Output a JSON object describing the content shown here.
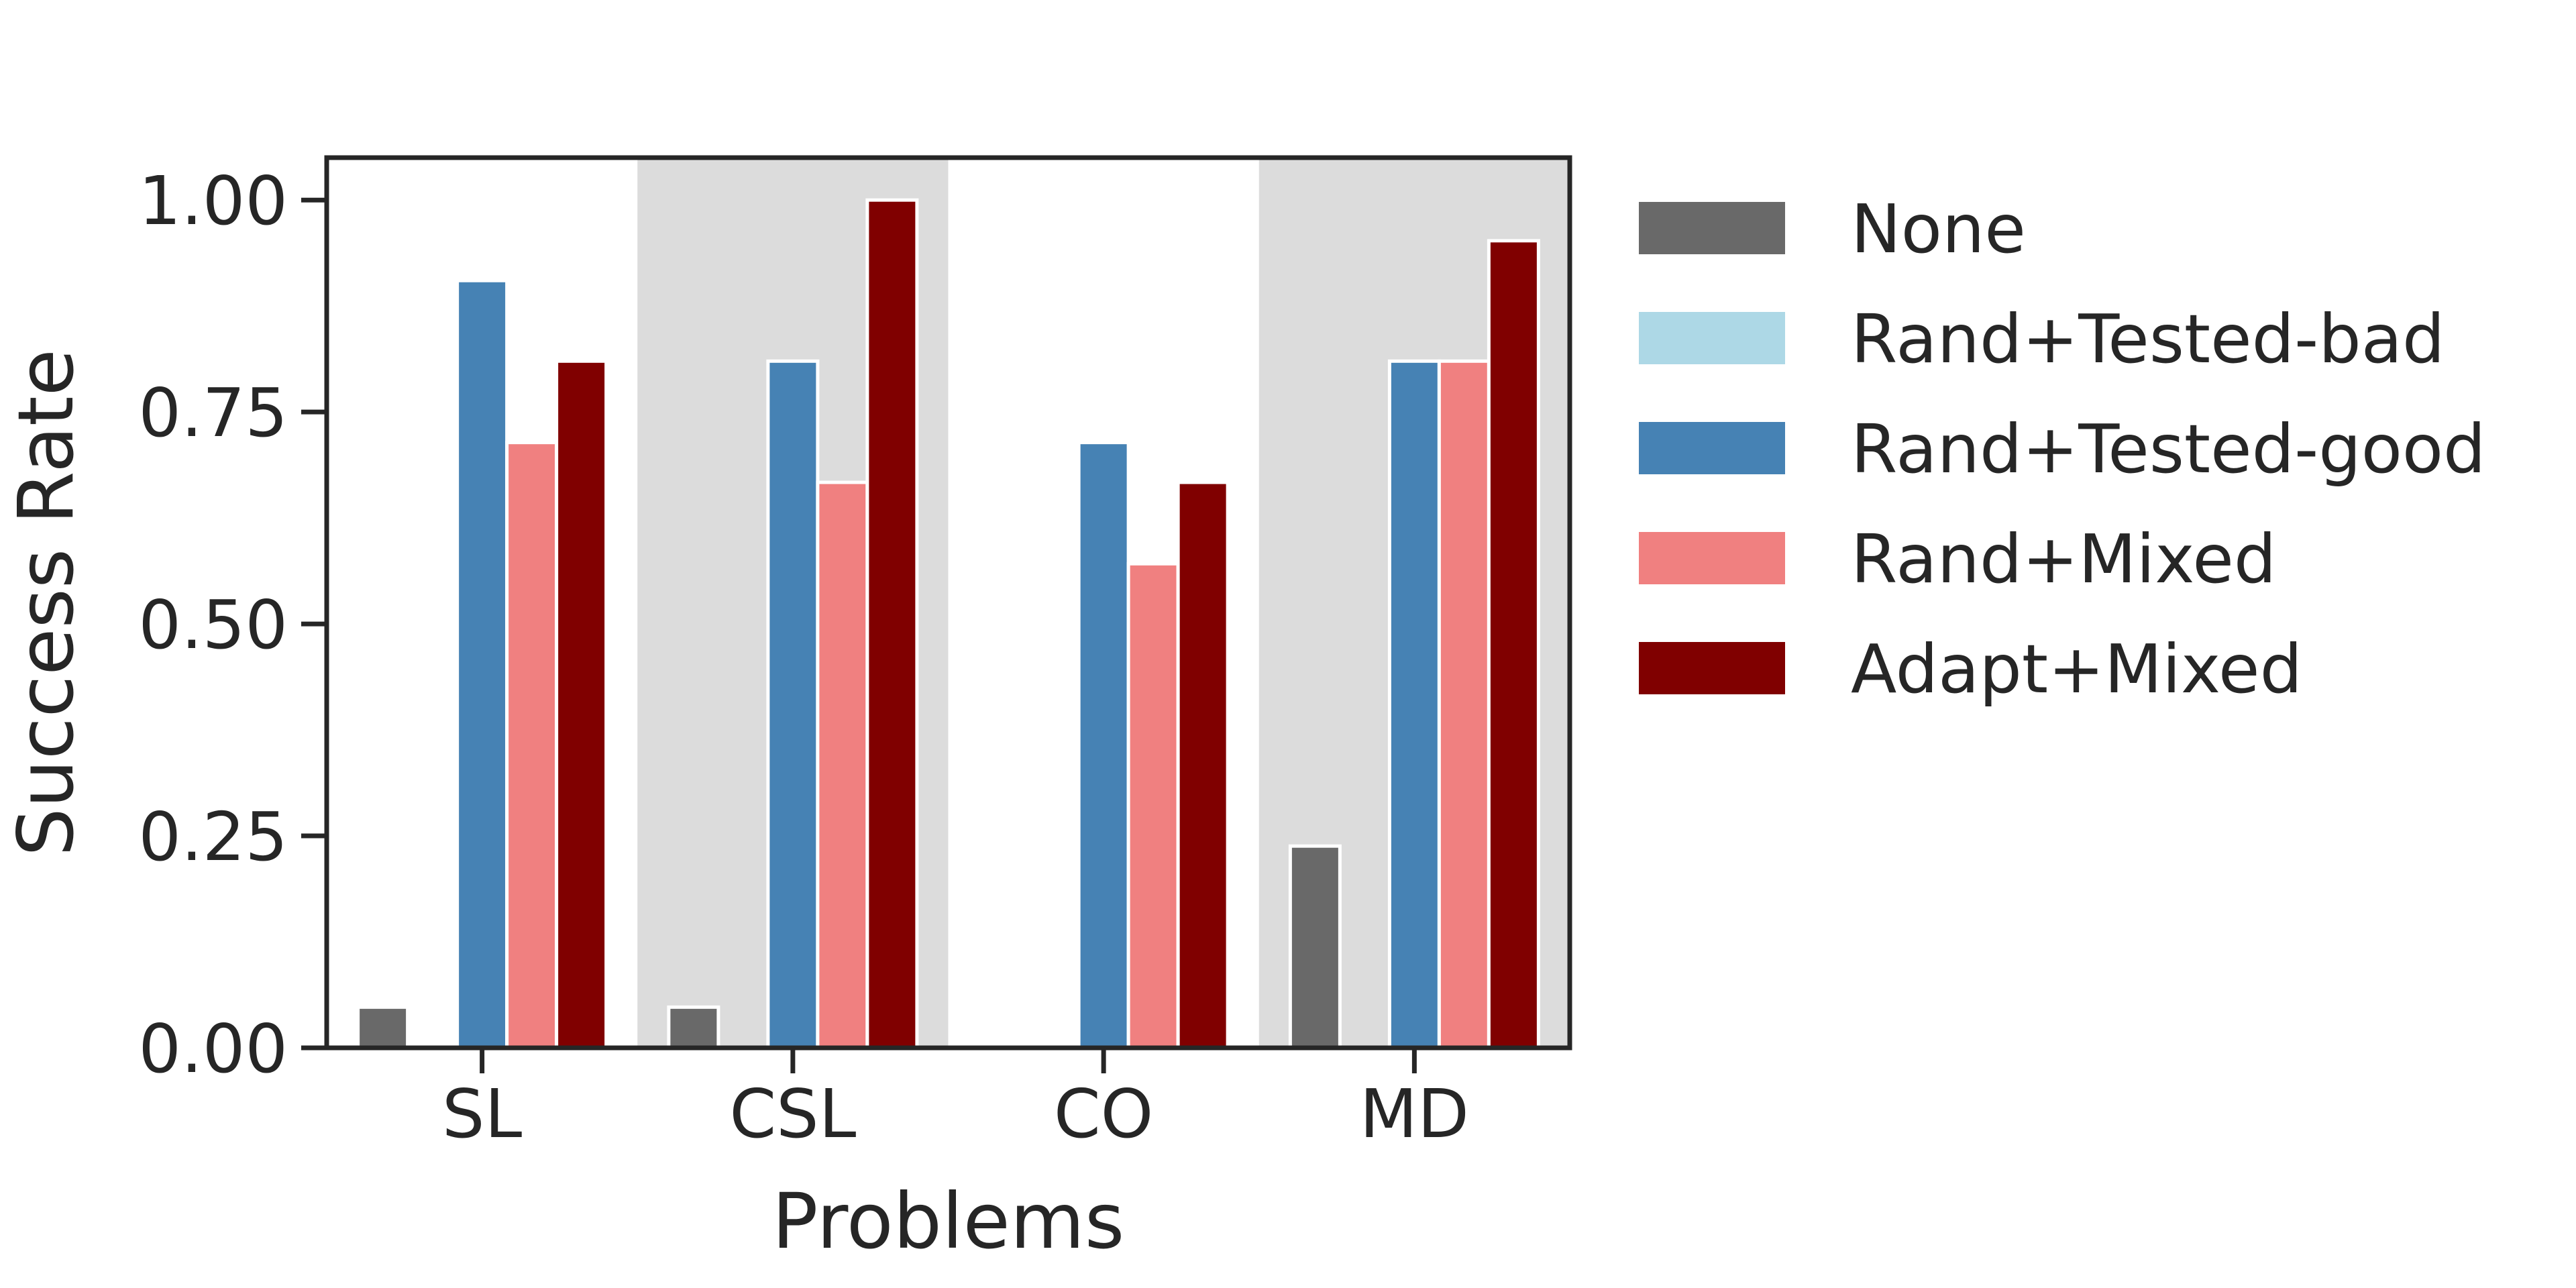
{
  "chart_data": {
    "type": "bar",
    "title": "",
    "xlabel": "Problems",
    "ylabel": "Success Rate",
    "categories": [
      "SL",
      "CSL",
      "CO",
      "MD"
    ],
    "ylim": [
      0,
      1.05
    ],
    "yticks": [
      "0.00",
      "0.25",
      "0.50",
      "0.75",
      "1.00"
    ],
    "grid": false,
    "alternating_background": true,
    "background_shade_color": "#dcdcdc",
    "legend_position": "right",
    "series": [
      {
        "name": "None",
        "color": "#696969",
        "values": [
          0.048,
          0.048,
          0.0,
          0.238
        ]
      },
      {
        "name": "Rand+Tested-bad",
        "color": "#add8e6",
        "values": [
          0.0,
          0.0,
          0.0,
          0.0
        ]
      },
      {
        "name": "Rand+Tested-good",
        "color": "#4682b4",
        "values": [
          0.905,
          0.81,
          0.714,
          0.81
        ]
      },
      {
        "name": "Rand+Mixed",
        "color": "#f08080",
        "values": [
          0.714,
          0.667,
          0.571,
          0.81
        ]
      },
      {
        "name": "Adapt+Mixed",
        "color": "#800000",
        "values": [
          0.81,
          1.0,
          0.667,
          0.952
        ]
      }
    ]
  }
}
